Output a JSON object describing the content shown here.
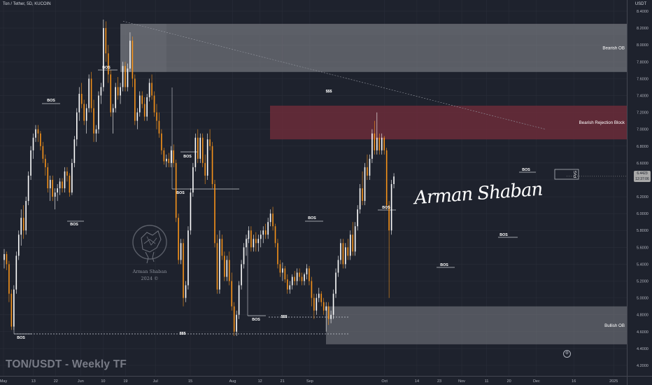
{
  "header": {
    "symbol_title": "Ton / Tether, 5D, KUCOIN",
    "currency": "USDT"
  },
  "footer": {
    "label": "TON/USDT - Weekly TF"
  },
  "price_badge": {
    "price": "6.4423",
    "countdown": "12:37:06",
    "value": 6.4423
  },
  "signature": "Arman Shaban",
  "logo": {
    "name": "Arman Shaban",
    "year": "2024 ©"
  },
  "colors": {
    "background": "#1e222d",
    "grid": "#2a2e39",
    "bull": "#ffffff",
    "bear": "#f7931a",
    "bearish_ob": "#8c8e94",
    "bearish_rejection": "#6b2b3a",
    "bullish_ob": "#7d7f86",
    "text": "#d1d4dc"
  },
  "chart_data": {
    "type": "candlestick",
    "ylim": [
      4.2,
      8.65
    ],
    "y_ticks": [
      8.4,
      8.2,
      8.0,
      7.8,
      7.6,
      7.4,
      7.2,
      7.0,
      6.8,
      6.6,
      6.4,
      6.2,
      6.0,
      5.8,
      5.6,
      5.4,
      5.2,
      5.0,
      4.8,
      4.6,
      4.4,
      4.2
    ],
    "y_tick_labels": [
      "8.4000",
      "8.2000",
      "8.0000",
      "7.8000",
      "7.6000",
      "7.4000",
      "7.2000",
      "7.0000",
      "6.8000",
      "6.6000",
      "6.4000",
      "6.2000",
      "6.0000",
      "5.8000",
      "5.6000",
      "5.4000",
      "5.2000",
      "5.0000",
      "4.8000",
      "4.6000",
      "4.4000",
      "4.2000"
    ],
    "x_ticks": [
      {
        "label": "May",
        "day": 0
      },
      {
        "label": "13",
        "day": 12
      },
      {
        "label": "22",
        "day": 21
      },
      {
        "label": "Jun",
        "day": 31
      },
      {
        "label": "10",
        "day": 40
      },
      {
        "label": "19",
        "day": 49
      },
      {
        "label": "Jul",
        "day": 61
      },
      {
        "label": "15",
        "day": 75
      },
      {
        "label": "Aug",
        "day": 92
      },
      {
        "label": "12",
        "day": 103
      },
      {
        "label": "21",
        "day": 112
      },
      {
        "label": "Sep",
        "day": 123
      },
      {
        "label": "Oct",
        "day": 153
      },
      {
        "label": "14",
        "day": 166
      },
      {
        "label": "23",
        "day": 175
      },
      {
        "label": "Nov",
        "day": 184
      },
      {
        "label": "11",
        "day": 194
      },
      {
        "label": "20",
        "day": 203
      },
      {
        "label": "Dec",
        "day": 214
      },
      {
        "label": "16",
        "day": 229
      },
      {
        "label": "2025",
        "day": 245
      }
    ],
    "candle_stride": 2.5,
    "candles": [
      [
        5.45,
        5.58,
        5.35,
        5.52
      ],
      [
        5.52,
        5.55,
        5.33,
        5.4
      ],
      [
        5.4,
        5.44,
        4.95,
        5.05
      ],
      [
        5.05,
        5.1,
        4.62,
        4.66
      ],
      [
        4.66,
        5.15,
        4.62,
        5.1
      ],
      [
        5.1,
        5.55,
        5.05,
        5.5
      ],
      [
        5.5,
        5.8,
        5.45,
        5.75
      ],
      [
        5.75,
        6.05,
        5.62,
        5.95
      ],
      [
        5.95,
        6.1,
        5.7,
        5.8
      ],
      [
        5.8,
        6.2,
        5.75,
        6.15
      ],
      [
        6.15,
        6.5,
        6.1,
        6.45
      ],
      [
        6.45,
        6.8,
        6.4,
        6.75
      ],
      [
        6.75,
        6.95,
        6.65,
        6.9
      ],
      [
        6.9,
        7.05,
        6.85,
        7.0
      ],
      [
        7.0,
        7.05,
        6.85,
        6.95
      ],
      [
        6.95,
        6.98,
        6.75,
        6.8
      ],
      [
        6.8,
        6.85,
        6.6,
        6.65
      ],
      [
        6.65,
        6.7,
        6.45,
        6.55
      ],
      [
        6.55,
        6.6,
        6.25,
        6.3
      ],
      [
        6.3,
        6.45,
        6.15,
        6.4
      ],
      [
        6.4,
        6.45,
        6.15,
        6.2
      ],
      [
        6.2,
        6.3,
        6.05,
        6.25
      ],
      [
        6.25,
        6.35,
        6.15,
        6.3
      ],
      [
        6.3,
        6.42,
        6.22,
        6.38
      ],
      [
        6.38,
        6.42,
        6.25,
        6.3
      ],
      [
        6.3,
        6.55,
        6.25,
        6.5
      ],
      [
        6.5,
        6.55,
        6.38,
        6.45
      ],
      [
        6.45,
        6.48,
        6.2,
        6.25
      ],
      [
        6.25,
        6.65,
        6.22,
        6.6
      ],
      [
        6.6,
        6.92,
        6.55,
        6.88
      ],
      [
        6.88,
        7.25,
        6.8,
        7.2
      ],
      [
        7.2,
        7.5,
        7.1,
        7.42
      ],
      [
        7.42,
        7.55,
        7.25,
        7.3
      ],
      [
        7.3,
        7.35,
        7.05,
        7.1
      ],
      [
        7.1,
        7.3,
        6.95,
        7.25
      ],
      [
        7.25,
        7.65,
        7.2,
        7.6
      ],
      [
        7.6,
        7.68,
        7.2,
        7.25
      ],
      [
        7.25,
        7.35,
        6.85,
        6.95
      ],
      [
        6.95,
        7.05,
        6.85,
        7.0
      ],
      [
        7.0,
        7.45,
        6.95,
        7.4
      ],
      [
        7.4,
        7.55,
        7.3,
        7.5
      ],
      [
        7.5,
        8.3,
        7.45,
        8.2
      ],
      [
        8.2,
        8.28,
        7.8,
        7.9
      ],
      [
        7.9,
        8.0,
        7.55,
        7.65
      ],
      [
        7.65,
        7.7,
        7.15,
        7.2
      ],
      [
        7.2,
        7.3,
        6.95,
        7.25
      ],
      [
        7.25,
        7.55,
        7.2,
        7.5
      ],
      [
        7.5,
        7.62,
        7.35,
        7.4
      ],
      [
        7.4,
        7.55,
        7.3,
        7.5
      ],
      [
        7.5,
        7.8,
        7.45,
        7.75
      ],
      [
        7.75,
        7.8,
        7.45,
        7.5
      ],
      [
        7.5,
        7.78,
        7.45,
        7.72
      ],
      [
        7.72,
        8.15,
        7.68,
        8.05
      ],
      [
        8.05,
        8.1,
        7.5,
        7.6
      ],
      [
        7.6,
        7.65,
        7.05,
        7.1
      ],
      [
        7.1,
        7.25,
        7.0,
        7.2
      ],
      [
        7.2,
        7.45,
        7.15,
        7.4
      ],
      [
        7.4,
        7.45,
        7.25,
        7.3
      ],
      [
        7.3,
        7.38,
        7.1,
        7.15
      ],
      [
        7.15,
        7.42,
        7.1,
        7.38
      ],
      [
        7.38,
        7.6,
        7.33,
        7.55
      ],
      [
        7.55,
        7.65,
        7.35,
        7.4
      ],
      [
        7.4,
        7.45,
        7.15,
        7.2
      ],
      [
        7.2,
        7.3,
        7.0,
        7.1
      ],
      [
        7.1,
        7.2,
        6.9,
        6.95
      ],
      [
        6.95,
        7.0,
        6.7,
        6.75
      ],
      [
        6.75,
        6.78,
        6.58,
        6.62
      ],
      [
        6.62,
        6.7,
        6.55,
        6.65
      ],
      [
        6.65,
        6.72,
        6.55,
        6.6
      ],
      [
        6.6,
        6.8,
        6.55,
        6.75
      ],
      [
        6.75,
        6.82,
        6.55,
        6.6
      ],
      [
        6.6,
        6.64,
        5.9,
        5.95
      ],
      [
        5.95,
        6.0,
        5.4,
        5.45
      ],
      [
        5.45,
        5.7,
        5.4,
        5.65
      ],
      [
        5.65,
        5.7,
        4.9,
        5.0
      ],
      [
        5.0,
        5.2,
        4.95,
        5.15
      ],
      [
        5.15,
        5.85,
        5.1,
        5.8
      ],
      [
        5.8,
        6.3,
        5.75,
        6.25
      ],
      [
        6.25,
        6.6,
        6.2,
        6.55
      ],
      [
        6.55,
        6.95,
        6.5,
        6.9
      ],
      [
        6.9,
        7.0,
        6.6,
        6.65
      ],
      [
        6.65,
        6.95,
        6.6,
        6.9
      ],
      [
        6.9,
        6.95,
        6.55,
        6.6
      ],
      [
        6.6,
        6.7,
        6.35,
        6.45
      ],
      [
        6.45,
        6.95,
        6.4,
        6.88
      ],
      [
        6.88,
        7.0,
        6.75,
        6.8
      ],
      [
        6.8,
        6.85,
        6.3,
        6.35
      ],
      [
        6.35,
        6.4,
        5.6,
        5.65
      ],
      [
        5.65,
        5.75,
        5.05,
        5.1
      ],
      [
        5.1,
        5.8,
        5.05,
        5.7
      ],
      [
        5.7,
        5.75,
        5.45,
        5.5
      ],
      [
        5.5,
        5.55,
        5.2,
        5.25
      ],
      [
        5.25,
        5.5,
        5.2,
        5.45
      ],
      [
        5.45,
        5.55,
        5.15,
        5.2
      ],
      [
        5.2,
        5.3,
        4.85,
        4.9
      ],
      [
        4.9,
        4.95,
        4.55,
        4.6
      ],
      [
        4.6,
        4.85,
        4.55,
        4.8
      ],
      [
        4.8,
        5.2,
        4.75,
        5.15
      ],
      [
        5.15,
        5.45,
        5.1,
        5.4
      ],
      [
        5.4,
        5.65,
        5.35,
        5.6
      ],
      [
        5.6,
        5.75,
        5.5,
        5.7
      ],
      [
        5.7,
        5.85,
        5.65,
        5.8
      ],
      [
        5.8,
        5.85,
        5.55,
        5.6
      ],
      [
        5.6,
        5.75,
        5.55,
        5.7
      ],
      [
        5.7,
        5.78,
        5.55,
        5.65
      ],
      [
        5.65,
        5.75,
        5.55,
        5.7
      ],
      [
        5.7,
        5.8,
        5.6,
        5.75
      ],
      [
        5.75,
        5.85,
        5.65,
        5.8
      ],
      [
        5.8,
        5.88,
        5.7,
        5.75
      ],
      [
        5.75,
        5.95,
        5.7,
        5.9
      ],
      [
        5.9,
        6.05,
        5.85,
        6.0
      ],
      [
        6.0,
        6.08,
        5.8,
        5.85
      ],
      [
        5.85,
        5.88,
        5.6,
        5.65
      ],
      [
        5.65,
        5.7,
        5.35,
        5.4
      ],
      [
        5.4,
        5.45,
        5.25,
        5.3
      ],
      [
        5.3,
        5.42,
        5.2,
        5.35
      ],
      [
        5.35,
        5.38,
        5.18,
        5.22
      ],
      [
        5.22,
        5.28,
        5.05,
        5.1
      ],
      [
        5.1,
        5.2,
        5.05,
        5.15
      ],
      [
        5.15,
        5.28,
        5.1,
        5.25
      ],
      [
        5.25,
        5.32,
        5.15,
        5.2
      ],
      [
        5.2,
        5.35,
        5.15,
        5.3
      ],
      [
        5.3,
        5.35,
        5.2,
        5.25
      ],
      [
        5.25,
        5.3,
        5.15,
        5.2
      ],
      [
        5.2,
        5.3,
        5.15,
        5.28
      ],
      [
        5.28,
        5.4,
        5.22,
        5.35
      ],
      [
        5.35,
        5.38,
        5.15,
        5.2
      ],
      [
        5.2,
        5.25,
        4.9,
        5.0
      ],
      [
        5.0,
        5.05,
        4.75,
        4.85
      ],
      [
        4.85,
        5.05,
        4.8,
        5.0
      ],
      [
        5.0,
        5.12,
        4.95,
        5.05
      ],
      [
        5.05,
        5.08,
        4.9,
        4.95
      ],
      [
        4.95,
        5.0,
        4.8,
        4.85
      ],
      [
        4.85,
        4.95,
        4.6,
        4.9
      ],
      [
        4.9,
        4.95,
        4.68,
        4.75
      ],
      [
        4.75,
        4.85,
        4.7,
        4.8
      ],
      [
        4.8,
        5.1,
        4.75,
        5.05
      ],
      [
        5.05,
        5.35,
        5.0,
        5.3
      ],
      [
        5.3,
        5.5,
        5.25,
        5.45
      ],
      [
        5.45,
        5.7,
        5.4,
        5.65
      ],
      [
        5.65,
        5.7,
        5.35,
        5.4
      ],
      [
        5.4,
        5.65,
        5.35,
        5.6
      ],
      [
        5.6,
        5.7,
        5.45,
        5.5
      ],
      [
        5.5,
        5.8,
        5.45,
        5.75
      ],
      [
        5.75,
        5.9,
        5.5,
        5.55
      ],
      [
        5.55,
        5.9,
        5.5,
        5.85
      ],
      [
        5.85,
        6.1,
        5.8,
        6.05
      ],
      [
        6.05,
        6.35,
        6.0,
        6.3
      ],
      [
        6.3,
        6.5,
        6.1,
        6.15
      ],
      [
        6.15,
        6.6,
        6.1,
        6.55
      ],
      [
        6.55,
        6.7,
        6.4,
        6.45
      ],
      [
        6.45,
        6.7,
        6.4,
        6.65
      ],
      [
        6.65,
        7.0,
        6.6,
        6.95
      ],
      [
        6.95,
        7.1,
        6.7,
        6.75
      ],
      [
        6.75,
        7.2,
        6.7,
        6.9
      ],
      [
        6.9,
        6.95,
        6.7,
        6.75
      ],
      [
        6.75,
        6.95,
        6.7,
        6.9
      ],
      [
        6.9,
        6.92,
        6.7,
        6.75
      ],
      [
        6.75,
        6.78,
        6.05,
        6.1
      ],
      [
        6.1,
        6.15,
        5.0,
        5.8
      ],
      [
        5.8,
        6.4,
        5.75,
        6.35
      ],
      [
        6.35,
        6.48,
        6.3,
        6.44
      ]
    ],
    "zones": [
      {
        "label": "Bearish OB",
        "y1": 7.68,
        "y2": 8.25
      },
      {
        "label": "Bearish Rejection Block",
        "y1": 6.88,
        "y2": 7.28
      },
      {
        "label": "Bullish OB",
        "y1": 4.45,
        "y2": 4.9
      }
    ],
    "annotations": [
      {
        "label": "BOS",
        "price": 7.78
      },
      {
        "label": "BOS",
        "price": 7.45
      },
      {
        "label": "BOS",
        "price": 6.0
      },
      {
        "label": "BOS",
        "price": 6.95
      },
      {
        "label": "BOS",
        "price": 6.4
      },
      {
        "label": "BOS",
        "price": 4.85
      },
      {
        "label": "BOS",
        "price": 4.6
      },
      {
        "label": "BOS",
        "price": 6.05
      },
      {
        "label": "BOS",
        "price": 6.1
      },
      {
        "label": "BOS",
        "price": 5.45
      },
      {
        "label": "BOS",
        "price": 5.8
      },
      {
        "label": "BOS",
        "price": 6.6
      },
      {
        "label": "$$$",
        "price": 7.62
      },
      {
        "label": "$$$",
        "price": 4.85
      },
      {
        "label": "$$$",
        "price": 4.6
      },
      {
        "label": "FVG",
        "price": 6.6
      }
    ]
  }
}
